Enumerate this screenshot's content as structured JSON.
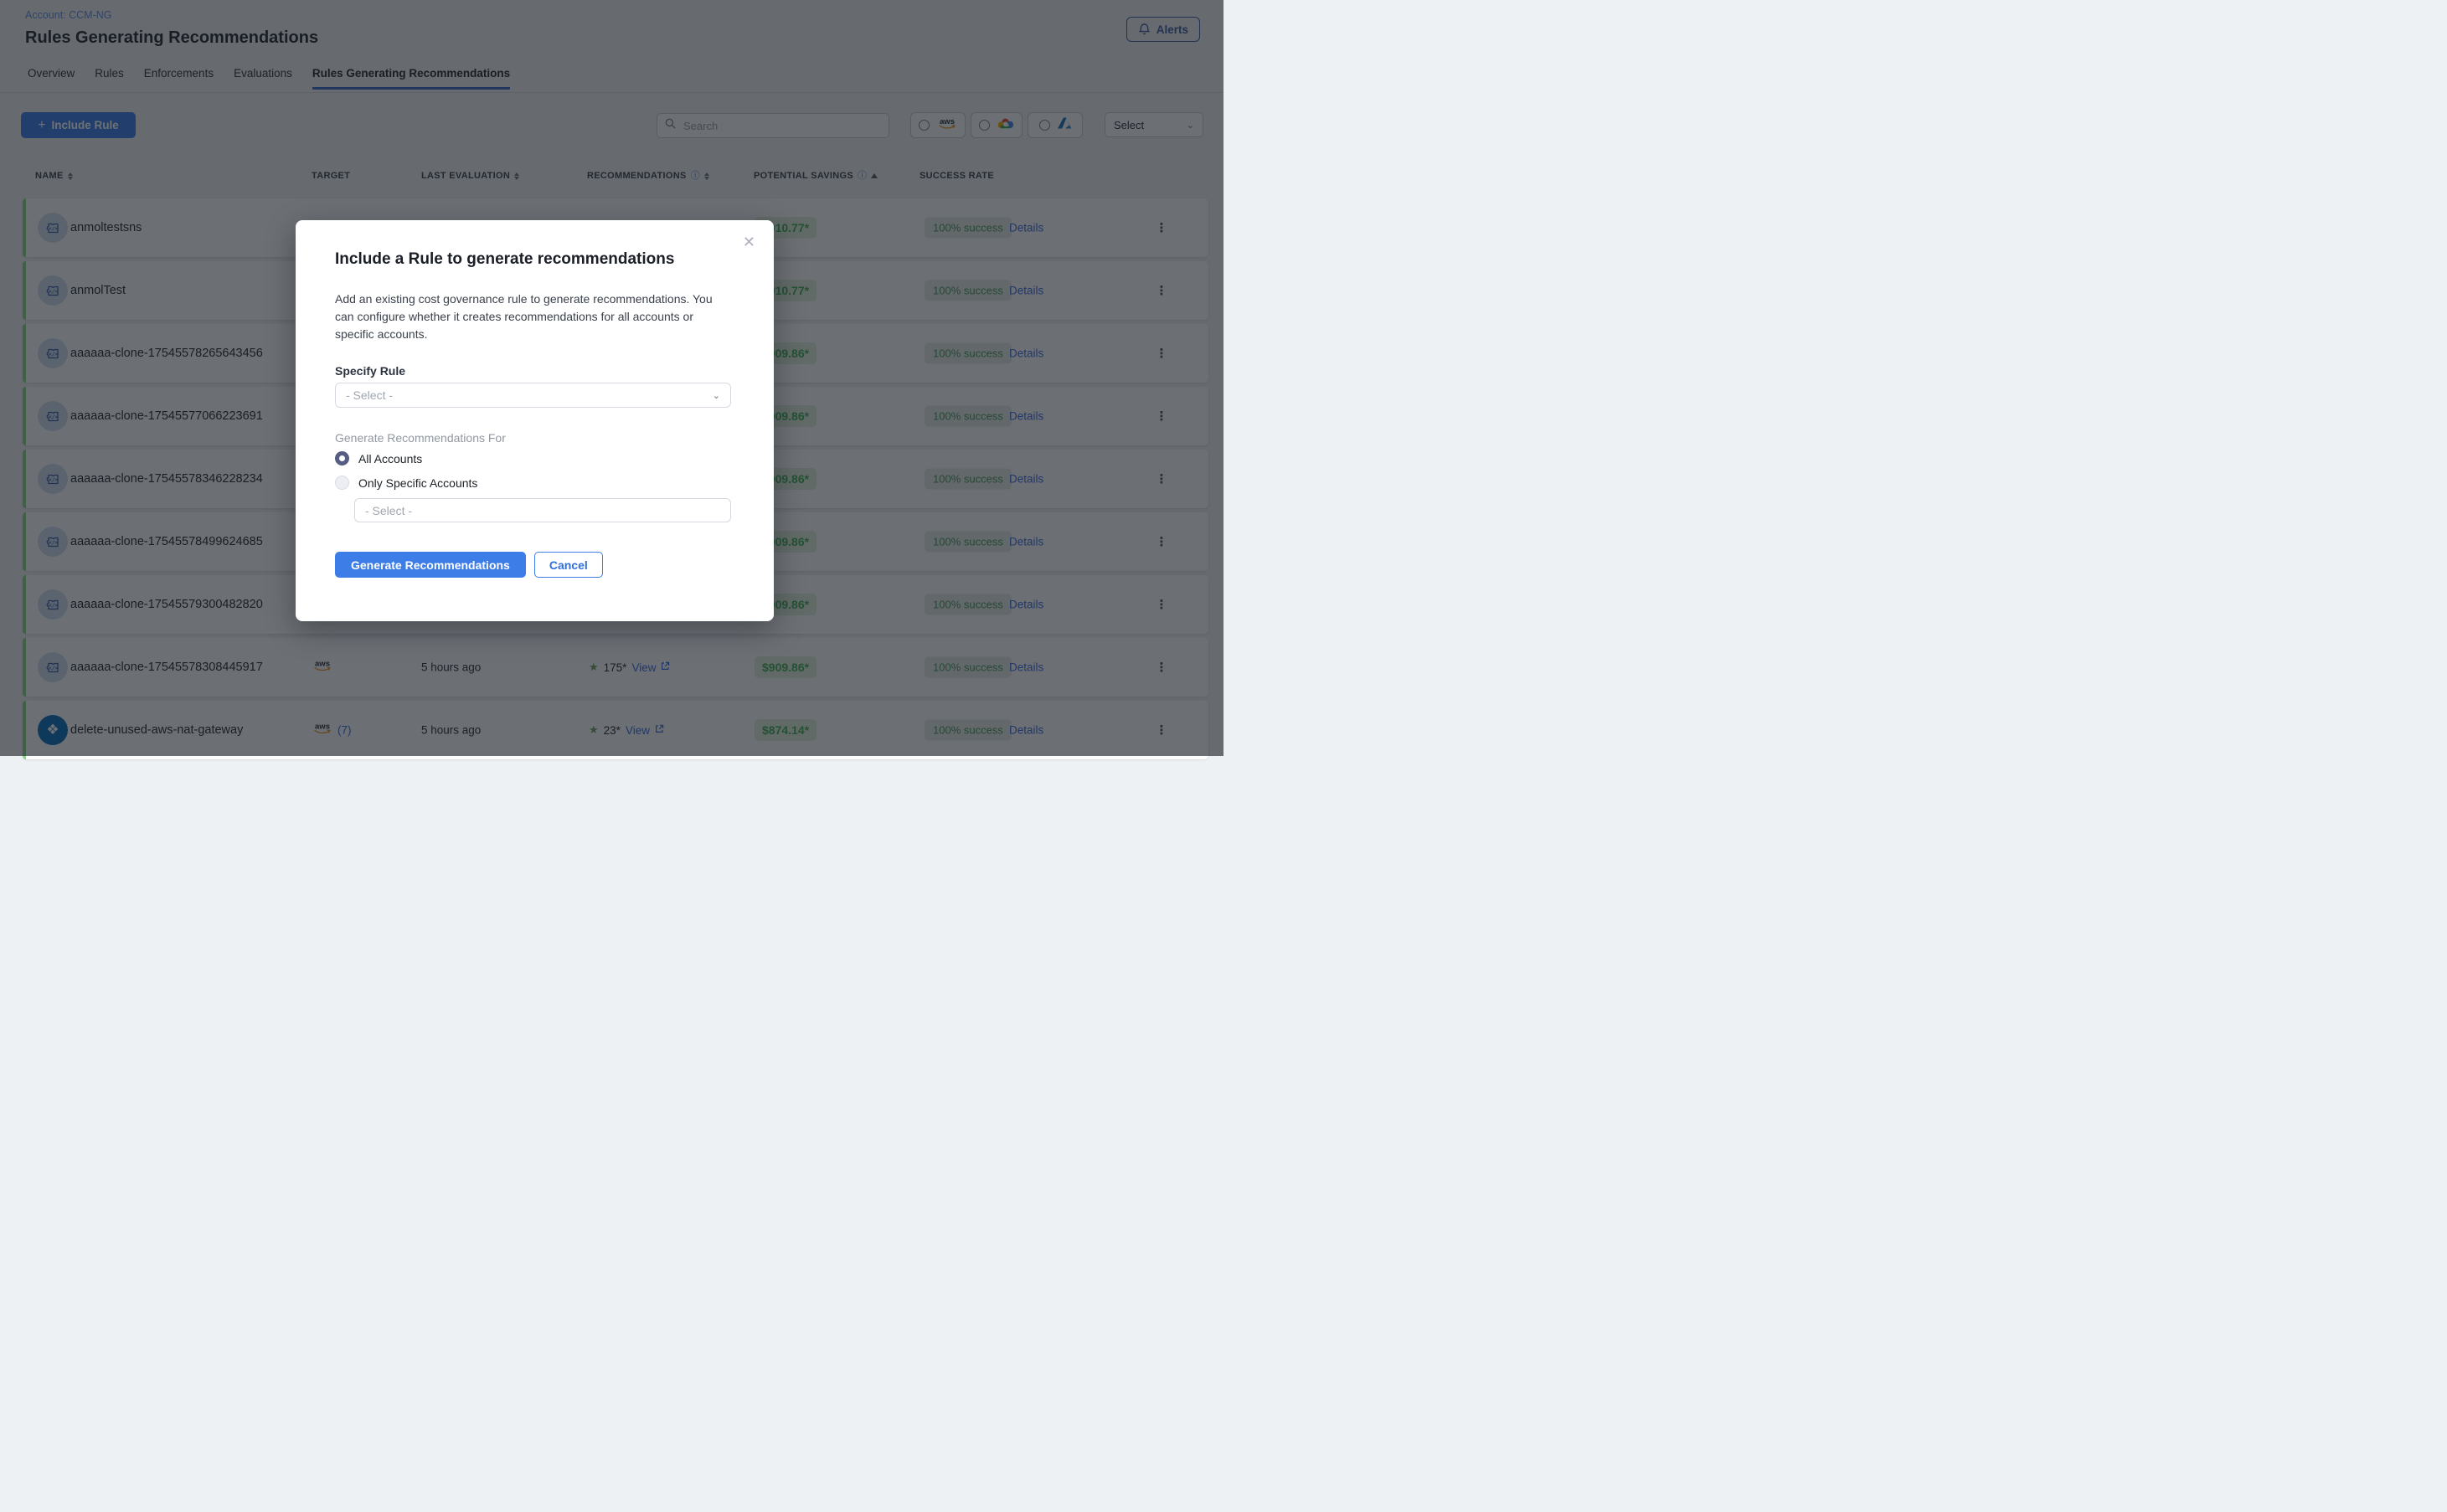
{
  "header": {
    "account": "Account: CCM-NG",
    "title": "Rules Generating Recommendations",
    "alerts_label": "Alerts"
  },
  "tabs": {
    "items": [
      {
        "label": "Overview",
        "active": false
      },
      {
        "label": "Rules",
        "active": false
      },
      {
        "label": "Enforcements",
        "active": false
      },
      {
        "label": "Evaluations",
        "active": false
      },
      {
        "label": "Rules Generating Recommendations",
        "active": true
      }
    ]
  },
  "toolbar": {
    "include_rule_label": "Include Rule",
    "search_placeholder": "Search",
    "providers": [
      {
        "name": "aws",
        "selected": false
      },
      {
        "name": "gcp",
        "selected": false
      },
      {
        "name": "azure",
        "selected": false
      }
    ],
    "filter_select_label": "Select"
  },
  "table": {
    "columns": [
      {
        "label": "NAME",
        "sort": "both",
        "info": false
      },
      {
        "label": "TARGET",
        "sort": "none",
        "info": false
      },
      {
        "label": "LAST EVALUATION",
        "sort": "both",
        "info": false
      },
      {
        "label": "RECOMMENDATIONS",
        "sort": "both",
        "info": true
      },
      {
        "label": "POTENTIAL SAVINGS",
        "sort": "asc",
        "info": true
      },
      {
        "label": "SUCCESS RATE",
        "sort": "none",
        "info": false
      }
    ],
    "rows": [
      {
        "name": "anmoltestsns",
        "icon": "custom-rule",
        "target": null,
        "target_count": null,
        "last_evaluation": null,
        "recommendation_count": null,
        "view_label": null,
        "savings": "$910.77*",
        "success": "100% success",
        "details_label": "Details"
      },
      {
        "name": "anmolTest",
        "icon": "custom-rule",
        "target": null,
        "target_count": null,
        "last_evaluation": null,
        "recommendation_count": null,
        "view_label": null,
        "savings": "$910.77*",
        "success": "100% success",
        "details_label": "Details"
      },
      {
        "name": "aaaaaa-clone-17545578265643456",
        "icon": "custom-rule",
        "target": null,
        "target_count": null,
        "last_evaluation": null,
        "recommendation_count": null,
        "view_label": null,
        "savings": "$909.86*",
        "success": "100% success",
        "details_label": "Details"
      },
      {
        "name": "aaaaaa-clone-17545577066223691",
        "icon": "custom-rule",
        "target": null,
        "target_count": null,
        "last_evaluation": null,
        "recommendation_count": null,
        "view_label": null,
        "savings": "$909.86*",
        "success": "100% success",
        "details_label": "Details"
      },
      {
        "name": "aaaaaa-clone-17545578346228234",
        "icon": "custom-rule",
        "target": null,
        "target_count": null,
        "last_evaluation": null,
        "recommendation_count": null,
        "view_label": null,
        "savings": "$909.86*",
        "success": "100% success",
        "details_label": "Details"
      },
      {
        "name": "aaaaaa-clone-17545578499624685",
        "icon": "custom-rule",
        "target": null,
        "target_count": null,
        "last_evaluation": null,
        "recommendation_count": null,
        "view_label": null,
        "savings": "$909.86*",
        "success": "100% success",
        "details_label": "Details"
      },
      {
        "name": "aaaaaa-clone-17545579300482820",
        "icon": "custom-rule",
        "target": null,
        "target_count": null,
        "last_evaluation": null,
        "recommendation_count": null,
        "view_label": null,
        "savings": "$909.86*",
        "success": "100% success",
        "details_label": "Details"
      },
      {
        "name": "aaaaaa-clone-17545578308445917",
        "icon": "custom-rule",
        "target": "aws",
        "target_count": null,
        "last_evaluation": "5 hours ago",
        "recommendation_count": "175*",
        "view_label": "View",
        "savings": "$909.86*",
        "success": "100% success",
        "details_label": "Details"
      },
      {
        "name": "delete-unused-aws-nat-gateway",
        "icon": "ootb-rule",
        "target": "aws",
        "target_count": "(7)",
        "last_evaluation": "5 hours ago",
        "recommendation_count": "23*",
        "view_label": "View",
        "savings": "$874.14*",
        "success": "100% success",
        "details_label": "Details"
      }
    ]
  },
  "modal": {
    "title": "Include a Rule to generate recommendations",
    "description": "Add an existing cost governance rule to generate recommendations. You can configure whether it creates recommendations for all accounts or specific accounts.",
    "specify_rule_label": "Specify Rule",
    "rule_select_placeholder": "- Select -",
    "generate_for_label": "Generate Recommendations For",
    "account_options": [
      {
        "label": "All Accounts",
        "selected": true
      },
      {
        "label": "Only Specific Accounts",
        "selected": false
      }
    ],
    "accounts_select_placeholder": "- Select -",
    "primary_button": "Generate Recommendations",
    "cancel_button": "Cancel"
  },
  "icons": {
    "plus": "+",
    "star": "★",
    "kebab": "⋮",
    "close": "✕",
    "chevron": "⌄",
    "info": "ⓘ",
    "ootb_glyph": "❖"
  },
  "colors": {
    "accent_blue": "#3c7de9",
    "tab_underline": "#3a66c4",
    "savings_green": "#3fae57",
    "row_accent_green": "#8fd18a",
    "link_blue": "#3b6ce0"
  }
}
